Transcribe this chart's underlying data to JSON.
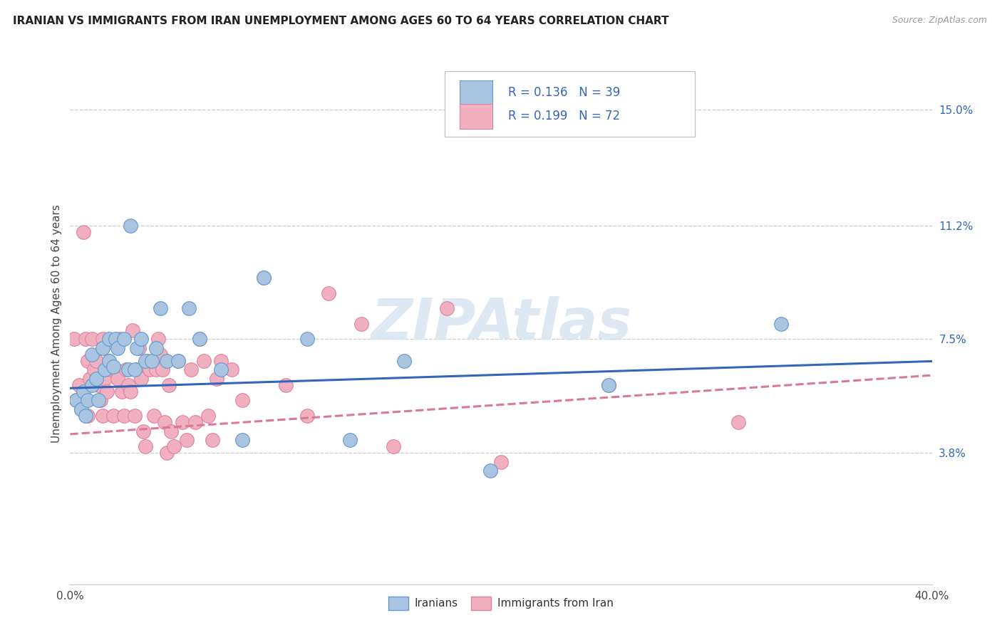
{
  "title": "IRANIAN VS IMMIGRANTS FROM IRAN UNEMPLOYMENT AMONG AGES 60 TO 64 YEARS CORRELATION CHART",
  "source": "Source: ZipAtlas.com",
  "ylabel": "Unemployment Among Ages 60 to 64 years",
  "right_yticks": [
    "15.0%",
    "11.2%",
    "7.5%",
    "3.8%"
  ],
  "right_ytick_values": [
    0.15,
    0.112,
    0.075,
    0.038
  ],
  "xmin": 0.0,
  "xmax": 0.4,
  "ymin": -0.005,
  "ymax": 0.165,
  "iranians_color": "#a8c4e0",
  "iranians_edge": "#6699cc",
  "immigrants_color": "#f0b0c0",
  "immigrants_edge": "#e080a0",
  "trendline_iranians_color": "#3366bb",
  "trendline_immigrants_color": "#dd7799",
  "legend_text_color": "#3366bb",
  "watermark_color": "#d8e4f0",
  "iranians_slope": 0.022,
  "iranians_intercept": 0.059,
  "immigrants_slope": 0.048,
  "immigrants_intercept": 0.044,
  "iranians_scatter_x": [
    0.003,
    0.005,
    0.006,
    0.007,
    0.008,
    0.01,
    0.01,
    0.012,
    0.013,
    0.015,
    0.016,
    0.018,
    0.018,
    0.02,
    0.021,
    0.022,
    0.025,
    0.027,
    0.028,
    0.03,
    0.031,
    0.033,
    0.035,
    0.038,
    0.04,
    0.042,
    0.045,
    0.05,
    0.055,
    0.06,
    0.07,
    0.08,
    0.09,
    0.11,
    0.13,
    0.155,
    0.195,
    0.25,
    0.33
  ],
  "iranians_scatter_y": [
    0.055,
    0.052,
    0.058,
    0.05,
    0.055,
    0.07,
    0.06,
    0.062,
    0.055,
    0.072,
    0.065,
    0.068,
    0.075,
    0.066,
    0.075,
    0.072,
    0.075,
    0.065,
    0.112,
    0.065,
    0.072,
    0.075,
    0.068,
    0.068,
    0.072,
    0.085,
    0.068,
    0.068,
    0.085,
    0.075,
    0.065,
    0.042,
    0.095,
    0.075,
    0.042,
    0.068,
    0.032,
    0.06,
    0.08
  ],
  "immigrants_scatter_x": [
    0.002,
    0.003,
    0.004,
    0.005,
    0.006,
    0.007,
    0.008,
    0.008,
    0.009,
    0.01,
    0.011,
    0.012,
    0.013,
    0.014,
    0.015,
    0.015,
    0.016,
    0.017,
    0.018,
    0.019,
    0.02,
    0.021,
    0.022,
    0.023,
    0.024,
    0.025,
    0.026,
    0.027,
    0.028,
    0.029,
    0.03,
    0.031,
    0.032,
    0.033,
    0.034,
    0.035,
    0.036,
    0.037,
    0.038,
    0.039,
    0.04,
    0.041,
    0.042,
    0.043,
    0.044,
    0.045,
    0.046,
    0.047,
    0.048,
    0.05,
    0.052,
    0.054,
    0.056,
    0.058,
    0.06,
    0.062,
    0.064,
    0.066,
    0.068,
    0.07,
    0.075,
    0.08,
    0.09,
    0.1,
    0.11,
    0.12,
    0.135,
    0.15,
    0.175,
    0.2,
    0.25,
    0.31
  ],
  "immigrants_scatter_y": [
    0.075,
    0.055,
    0.06,
    0.052,
    0.11,
    0.075,
    0.05,
    0.068,
    0.062,
    0.075,
    0.065,
    0.068,
    0.06,
    0.055,
    0.05,
    0.075,
    0.062,
    0.058,
    0.068,
    0.065,
    0.05,
    0.065,
    0.062,
    0.075,
    0.058,
    0.05,
    0.065,
    0.06,
    0.058,
    0.078,
    0.05,
    0.065,
    0.072,
    0.062,
    0.045,
    0.04,
    0.068,
    0.065,
    0.068,
    0.05,
    0.065,
    0.075,
    0.07,
    0.065,
    0.048,
    0.038,
    0.06,
    0.045,
    0.04,
    0.068,
    0.048,
    0.042,
    0.065,
    0.048,
    0.075,
    0.068,
    0.05,
    0.042,
    0.062,
    0.068,
    0.065,
    0.055,
    0.095,
    0.06,
    0.05,
    0.09,
    0.08,
    0.04,
    0.085,
    0.035,
    0.06,
    0.048
  ]
}
